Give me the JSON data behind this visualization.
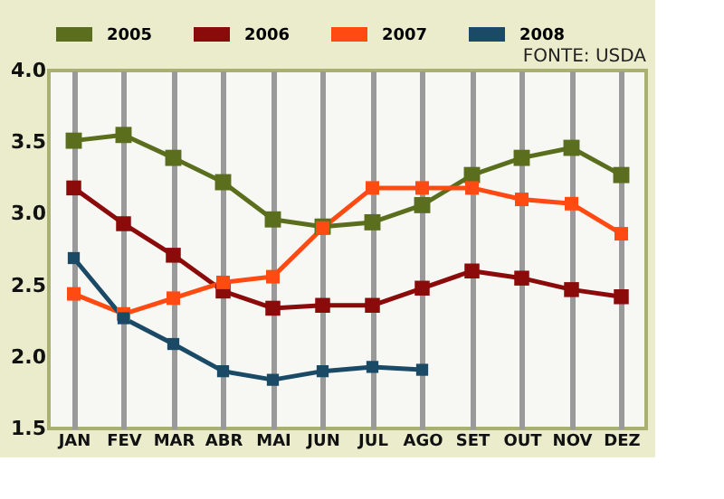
{
  "chart_data": {
    "type": "line",
    "categories": [
      "JAN",
      "FEV",
      "MAR",
      "ABR",
      "MAI",
      "JUN",
      "JUL",
      "AGO",
      "SET",
      "OUT",
      "NOV",
      "DEZ"
    ],
    "series": [
      {
        "name": "2005",
        "color": "#5a6e1e",
        "values": [
          3.51,
          3.55,
          3.39,
          3.22,
          2.96,
          2.91,
          2.94,
          3.06,
          3.27,
          3.39,
          3.46,
          3.27
        ]
      },
      {
        "name": "2006",
        "color": "#8b0a0a",
        "values": [
          3.18,
          2.93,
          2.71,
          2.46,
          2.34,
          2.36,
          2.36,
          2.48,
          2.6,
          2.55,
          2.47,
          2.42
        ]
      },
      {
        "name": "2007",
        "color": "#ff4a12",
        "values": [
          2.44,
          2.3,
          2.41,
          2.52,
          2.56,
          2.9,
          3.18,
          3.18,
          3.18,
          3.1,
          3.07,
          2.86
        ]
      },
      {
        "name": "2008",
        "color": "#1a4a66",
        "values": [
          2.69,
          2.27,
          2.09,
          1.9,
          1.84,
          1.9,
          1.93,
          1.91,
          null,
          null,
          null,
          null
        ]
      }
    ],
    "ylim": [
      1.5,
      4.0
    ],
    "yticks": [
      {
        "value": 1.5,
        "label": "1.5"
      },
      {
        "value": 2.0,
        "label": "2.0"
      },
      {
        "value": 2.5,
        "label": "2.5"
      },
      {
        "value": 3.0,
        "label": "3.0"
      },
      {
        "value": 3.5,
        "label": "3.5"
      },
      {
        "value": 4.0,
        "label": "4.0"
      }
    ],
    "annotations": [
      "FONTE: USDA"
    ],
    "grid": "x",
    "legend": "top left",
    "marker": "square",
    "line_style": "solid"
  }
}
